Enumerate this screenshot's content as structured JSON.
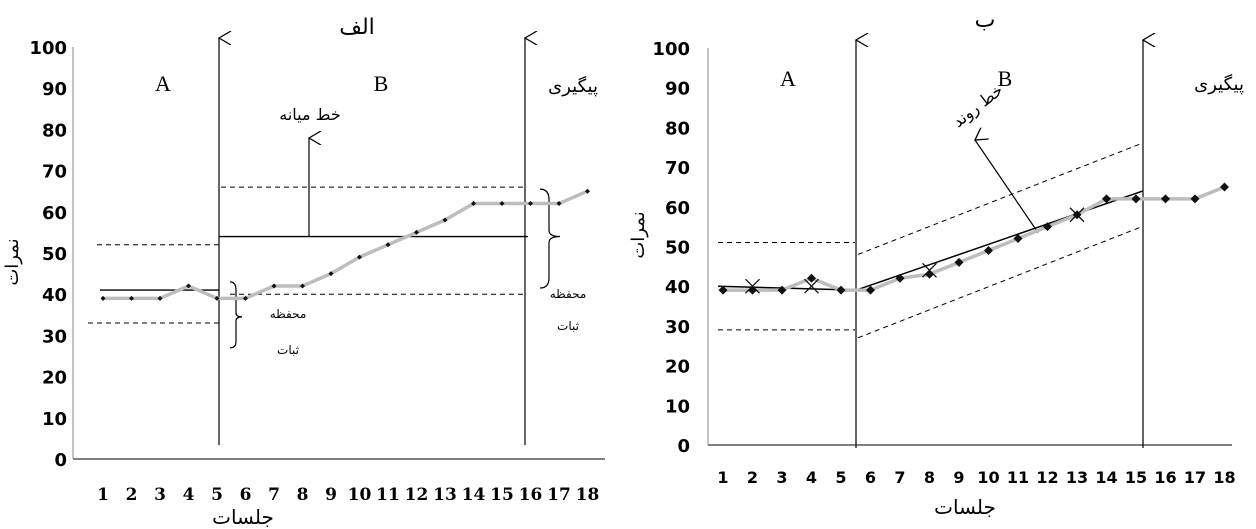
{
  "chart_data": [
    {
      "panel": "alef",
      "type": "line",
      "title": "الف",
      "xlabel": "جلسات",
      "ylabel": "نمرات",
      "yticks": [
        "0",
        "10",
        "20",
        "30",
        "40",
        "50",
        "60",
        "70",
        "80",
        "90",
        "100"
      ],
      "ylim": [
        0,
        100
      ],
      "xticks": [
        "1",
        "2",
        "3",
        "4",
        "5",
        "6",
        "7",
        "8",
        "9",
        "10",
        "11",
        "12",
        "13",
        "14",
        "15",
        "16",
        "17",
        "18"
      ],
      "series": [
        {
          "x": [
            1,
            2,
            3,
            4,
            5,
            6,
            7,
            8,
            9,
            10,
            11,
            12,
            13,
            14,
            15,
            16,
            17,
            18
          ],
          "values": [
            39,
            39,
            39,
            42,
            39,
            39,
            42,
            42,
            45,
            49,
            52,
            55,
            58,
            62,
            62,
            62,
            62,
            65
          ]
        }
      ],
      "phases": [
        {
          "label": "A",
          "from": 1,
          "to": 5
        },
        {
          "label": "B",
          "from": 5,
          "to": 16
        },
        {
          "label": "پیگیری",
          "from": 16,
          "to": 18
        }
      ],
      "phase_lines_after_session": [
        5,
        16
      ],
      "median_lines": [
        {
          "phase": "A",
          "value": 41
        },
        {
          "phase": "B",
          "value": 54
        }
      ],
      "stability_envelopes": [
        {
          "phase": "A",
          "upper": 52,
          "lower": 33
        },
        {
          "phase": "B",
          "upper": 66,
          "lower": 40
        }
      ],
      "annotations": {
        "median_label": "خط میانه",
        "stability_label_1": "محفظه",
        "stability_label_2": "ثبات"
      },
      "colors": {
        "data_line": "#bdbdbd",
        "marker": "#111111",
        "axis": "#000000"
      }
    },
    {
      "panel": "be",
      "type": "line",
      "title": "ب",
      "xlabel": "جلسات",
      "ylabel": "نمرات",
      "yticks": [
        "0",
        "10",
        "20",
        "30",
        "40",
        "50",
        "60",
        "70",
        "80",
        "90",
        "100"
      ],
      "ylim": [
        0,
        100
      ],
      "xticks": [
        "1",
        "2",
        "3",
        "4",
        "5",
        "6",
        "7",
        "8",
        "9",
        "10",
        "11",
        "12",
        "13",
        "14",
        "15",
        "16",
        "17",
        "18"
      ],
      "series": [
        {
          "x": [
            1,
            2,
            3,
            4,
            5,
            6,
            7,
            8,
            9,
            10,
            11,
            12,
            13,
            14,
            15,
            16,
            17,
            18
          ],
          "values": [
            39,
            39,
            39,
            42,
            39,
            39,
            42,
            43,
            46,
            49,
            52,
            55,
            58,
            62,
            62,
            62,
            62,
            65
          ]
        }
      ],
      "phases": [
        {
          "label": "A",
          "from": 1,
          "to": 5
        },
        {
          "label": "B",
          "from": 6,
          "to": 15
        },
        {
          "label": "پیگیری",
          "from": 16,
          "to": 18
        }
      ],
      "phase_lines_after_session": [
        5.5,
        15
      ],
      "x_marks": [
        {
          "x": 2,
          "y": 40
        },
        {
          "x": 4,
          "y": 40
        },
        {
          "x": 8,
          "y": 44
        },
        {
          "x": 13,
          "y": 58
        }
      ],
      "trend_lines": [
        {
          "phase": "A",
          "from": [
            1,
            40
          ],
          "to": [
            5.5,
            39
          ]
        },
        {
          "phase": "B",
          "from": [
            5.5,
            39
          ],
          "to": [
            15,
            64
          ]
        }
      ],
      "trend_envelopes": [
        {
          "phase": "A",
          "upper": [
            [
              1,
              51
            ],
            [
              5.5,
              51
            ]
          ],
          "lower": [
            [
              1,
              29
            ],
            [
              5.5,
              29
            ]
          ]
        },
        {
          "phase": "B",
          "upper": [
            [
              5.5,
              48
            ],
            [
              15,
              76
            ]
          ],
          "lower": [
            [
              5.5,
              27
            ],
            [
              15,
              55
            ]
          ]
        }
      ],
      "annotations": {
        "trend_label": "خط روند"
      },
      "colors": {
        "data_line": "#bdbdbd",
        "marker": "#111111",
        "axis": "#000000"
      }
    }
  ]
}
